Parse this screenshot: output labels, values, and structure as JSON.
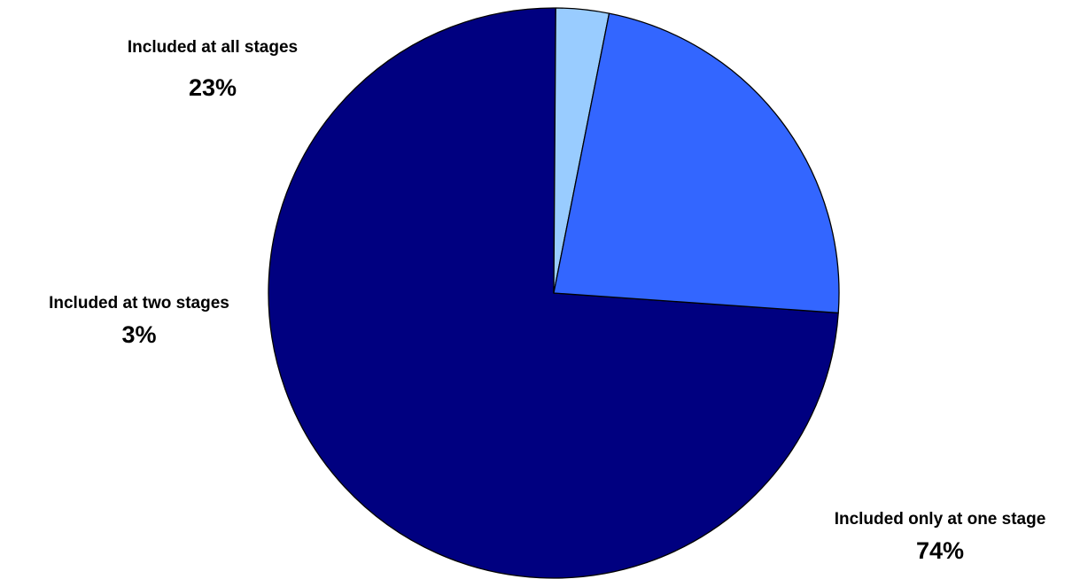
{
  "chart_data": {
    "type": "pie",
    "title": "",
    "start_angle_deg": 94,
    "direction": "clockwise",
    "slices": [
      {
        "label": "Included only at one stage",
        "value": 74,
        "value_label": "74%",
        "color": "#000080"
      },
      {
        "label": "Included at two stages",
        "value": 3,
        "value_label": "3%",
        "color": "#99CCFF"
      },
      {
        "label": "Included at all stages",
        "value": 23,
        "value_label": "23%",
        "color": "#3366FF"
      }
    ]
  }
}
